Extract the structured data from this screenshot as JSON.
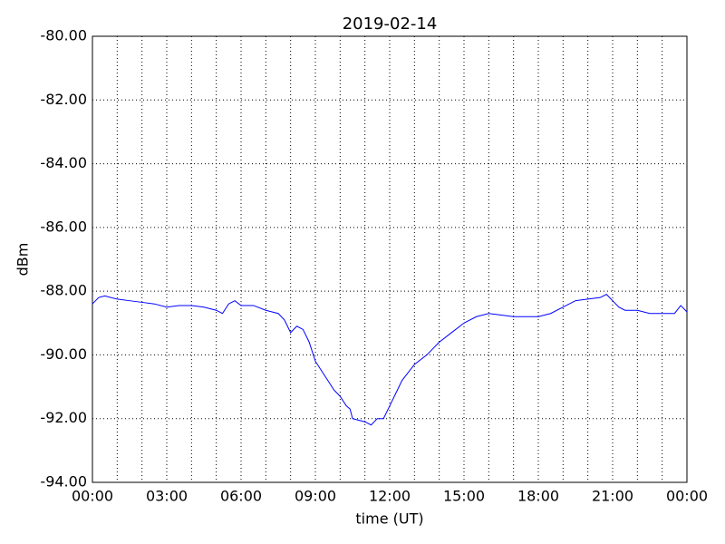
{
  "chart_data": {
    "type": "line",
    "title": "2019-02-14",
    "x_label": "time (UT)",
    "y_label": "dBm",
    "x": [
      0,
      0.25,
      0.5,
      1,
      1.5,
      2,
      2.5,
      3,
      3.5,
      4,
      4.5,
      5,
      5.25,
      5.5,
      5.75,
      6,
      6.5,
      7,
      7.5,
      7.75,
      8,
      8.25,
      8.5,
      8.75,
      9,
      9.25,
      9.5,
      9.75,
      10,
      10.25,
      10.4,
      10.5,
      11,
      11.25,
      11.5,
      11.75,
      12,
      12.25,
      12.5,
      13,
      13.5,
      14,
      14.5,
      15,
      15.5,
      16,
      16.5,
      17,
      18,
      18.5,
      19,
      19.5,
      20,
      20.5,
      20.75,
      21,
      21.25,
      21.5,
      22,
      22.5,
      23,
      23.5,
      23.75,
      24
    ],
    "series": [
      {
        "name": "dBm",
        "color": "#0000ff",
        "values": [
          -88.4,
          -88.2,
          -88.15,
          -88.25,
          -88.3,
          -88.35,
          -88.4,
          -88.5,
          -88.45,
          -88.45,
          -88.5,
          -88.6,
          -88.7,
          -88.4,
          -88.3,
          -88.45,
          -88.45,
          -88.6,
          -88.7,
          -88.9,
          -89.3,
          -89.1,
          -89.2,
          -89.6,
          -90.2,
          -90.5,
          -90.8,
          -91.1,
          -91.3,
          -91.6,
          -91.7,
          -92.0,
          -92.1,
          -92.2,
          -92.0,
          -92.0,
          -91.6,
          -91.2,
          -90.8,
          -90.3,
          -90.0,
          -89.6,
          -89.3,
          -89.0,
          -88.8,
          -88.7,
          -88.75,
          -88.8,
          -88.8,
          -88.7,
          -88.5,
          -88.3,
          -88.25,
          -88.2,
          -88.1,
          -88.3,
          -88.5,
          -88.6,
          -88.6,
          -88.7,
          -88.7,
          -88.7,
          -88.45,
          -88.65
        ]
      }
    ],
    "xlim": [
      0,
      24
    ],
    "xticks": [
      {
        "value": 0,
        "label": "00:00"
      },
      {
        "value": 3,
        "label": "03:00"
      },
      {
        "value": 6,
        "label": "06:00"
      },
      {
        "value": 9,
        "label": "09:00"
      },
      {
        "value": 12,
        "label": "12:00"
      },
      {
        "value": 15,
        "label": "15:00"
      },
      {
        "value": 18,
        "label": "18:00"
      },
      {
        "value": 21,
        "label": "21:00"
      },
      {
        "value": 24,
        "label": "00:00"
      }
    ],
    "xminorticks": [
      1,
      2,
      4,
      5,
      7,
      8,
      10,
      11,
      13,
      14,
      16,
      17,
      19,
      20,
      22,
      23
    ],
    "ylim": [
      -94,
      -80
    ],
    "yticks": [
      {
        "value": -94,
        "label": "-94.00"
      },
      {
        "value": -92,
        "label": "-92.00"
      },
      {
        "value": -90,
        "label": "-90.00"
      },
      {
        "value": -88,
        "label": "-88.00"
      },
      {
        "value": -86,
        "label": "-86.00"
      },
      {
        "value": -84,
        "label": "-84.00"
      },
      {
        "value": -82,
        "label": "-82.00"
      },
      {
        "value": -80,
        "label": "-80.00"
      }
    ],
    "grid": true
  }
}
